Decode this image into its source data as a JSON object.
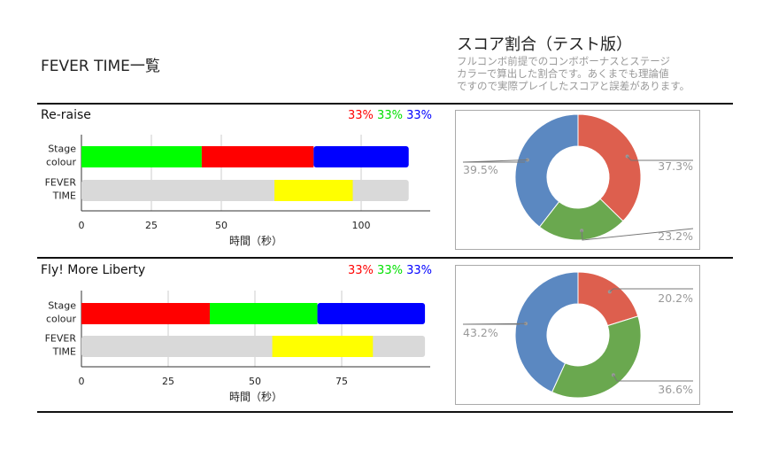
{
  "header": {
    "title": "FEVER TIME一覧",
    "ratio_title": "スコア割合（テスト版）",
    "ratio_note": [
      "フルコンボ前提でのコンボボーナスとステージ",
      "カラーで算出した割合です。あくまでも理論値",
      "ですので実際プレイしたスコアと誤差があります。"
    ]
  },
  "songs": [
    {
      "name": "Re-raise",
      "pct": [
        "33%",
        "33%",
        "33%"
      ]
    },
    {
      "name": "Fly! More Liberty",
      "pct": [
        "33%",
        "33%",
        "33%"
      ]
    }
  ],
  "colors": {
    "red": "#ff0000",
    "green": "#00ff00",
    "blue": "#0000ff",
    "yellow": "#ffff00",
    "gray": "#d9d9d9",
    "pie_red": "#dd5f4e",
    "pie_green": "#6aa84f",
    "pie_blue": "#5b88c1"
  },
  "chart_data": [
    {
      "type": "bar",
      "orientation": "horizontal-stacked",
      "categories": [
        "Stage\ncolour",
        "FEVER\nTIME"
      ],
      "xlabel": "時間（秒）",
      "xticks": [
        0,
        25,
        50,
        100
      ],
      "xlim": [
        0,
        125
      ],
      "stage_segments": [
        {
          "color": "green",
          "start": 0,
          "end": 43
        },
        {
          "color": "red",
          "start": 43,
          "end": 83
        },
        {
          "color": "blue",
          "start": 83,
          "end": 117
        }
      ],
      "fever": {
        "total": 117,
        "start": 69,
        "end": 97
      }
    },
    {
      "type": "pie",
      "donut": true,
      "slices": [
        {
          "label": "37.3%",
          "value": 37.3,
          "color": "pie_red"
        },
        {
          "label": "23.2%",
          "value": 23.2,
          "color": "pie_green"
        },
        {
          "label": "39.5%",
          "value": 39.5,
          "color": "pie_blue"
        }
      ]
    },
    {
      "type": "bar",
      "orientation": "horizontal-stacked",
      "categories": [
        "Stage\ncolour",
        "FEVER\nTIME"
      ],
      "xlabel": "時間（秒）",
      "xticks": [
        0,
        25,
        50,
        75
      ],
      "xlim": [
        0,
        100
      ],
      "stage_segments": [
        {
          "color": "red",
          "start": 0,
          "end": 37
        },
        {
          "color": "green",
          "start": 37,
          "end": 68
        },
        {
          "color": "blue",
          "start": 68,
          "end": 99
        }
      ],
      "fever": {
        "total": 99,
        "start": 55,
        "end": 84
      }
    },
    {
      "type": "pie",
      "donut": true,
      "slices": [
        {
          "label": "20.2%",
          "value": 20.2,
          "color": "pie_red"
        },
        {
          "label": "36.6%",
          "value": 36.6,
          "color": "pie_green"
        },
        {
          "label": "43.2%",
          "value": 43.2,
          "color": "pie_blue"
        }
      ]
    }
  ]
}
